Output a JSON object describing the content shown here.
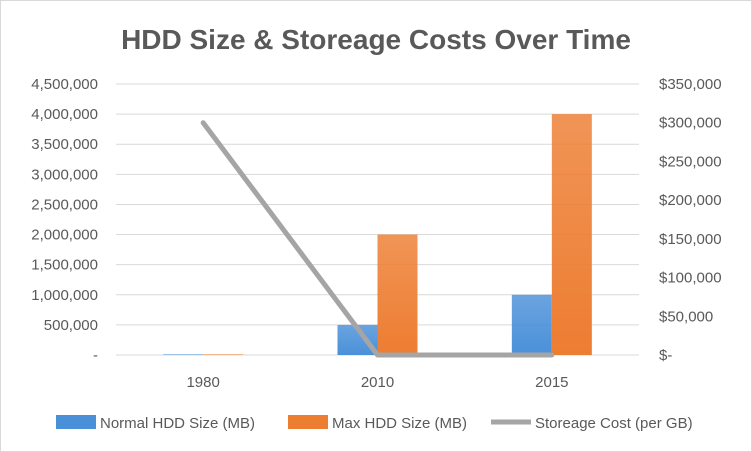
{
  "chart_data": {
    "type": "bar",
    "title": "HDD Size & Storeage Costs Over Time",
    "categories": [
      "1980",
      "2010",
      "2015"
    ],
    "series": [
      {
        "name": "Normal HDD Size (MB)",
        "kind": "bar",
        "axis": "left",
        "color": "#4a90d9",
        "values": [
          10,
          500000,
          1000000
        ]
      },
      {
        "name": "Max HDD Size (MB)",
        "kind": "bar",
        "axis": "left",
        "color": "#ed7d31",
        "values": [
          20,
          2000000,
          4000000
        ]
      },
      {
        "name": "Storeage Cost (per GB)",
        "kind": "line",
        "axis": "right",
        "color": "#a5a5a5",
        "values": [
          300000,
          0.05,
          0.03
        ]
      }
    ],
    "y_left": {
      "min": 0,
      "max": 4500000,
      "ticks": [
        0,
        500000,
        1000000,
        1500000,
        2000000,
        2500000,
        3000000,
        3500000,
        4000000,
        4500000
      ],
      "tick_labels": [
        "-",
        "500,000",
        "1,000,000",
        "1,500,000",
        "2,000,000",
        "2,500,000",
        "3,000,000",
        "3,500,000",
        "4,000,000",
        "4,500,000"
      ]
    },
    "y_right": {
      "min": 0,
      "max": 350000,
      "ticks": [
        0,
        50000,
        100000,
        150000,
        200000,
        250000,
        300000,
        350000
      ],
      "tick_labels": [
        "$-",
        "$50,000",
        "$100,000",
        "$150,000",
        "$200,000",
        "$250,000",
        "$300,000",
        "$350,000"
      ]
    },
    "grid": true,
    "legend_position": "bottom",
    "xlabel": "",
    "ylabel": ""
  }
}
